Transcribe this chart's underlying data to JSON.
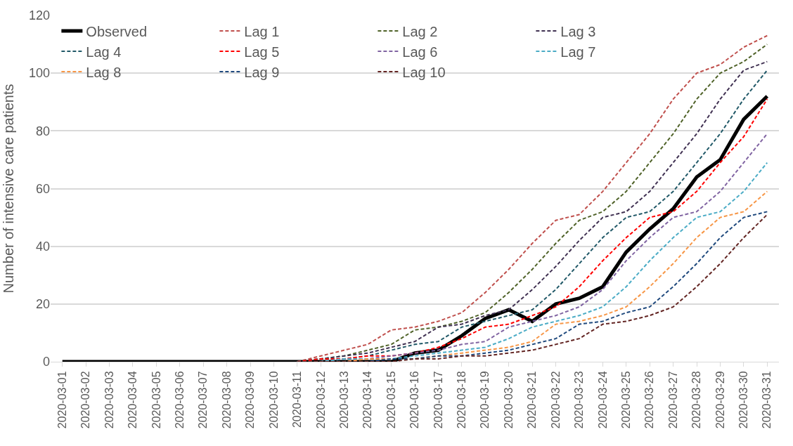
{
  "chart_data": {
    "type": "line",
    "ylabel": "Number of intensive care patients",
    "categories": [
      "2020-03-01",
      "2020-03-02",
      "2020-03-03",
      "2020-03-04",
      "2020-03-05",
      "2020-03-06",
      "2020-03-07",
      "2020-03-08",
      "2020-03-09",
      "2020-03-10",
      "2020-03-11",
      "2020-03-12",
      "2020-03-13",
      "2020-03-14",
      "2020-03-15",
      "2020-03-16",
      "2020-03-17",
      "2020-03-18",
      "2020-03-19",
      "2020-03-20",
      "2020-03-21",
      "2020-03-22",
      "2020-03-23",
      "2020-03-24",
      "2020-03-25",
      "2020-03-26",
      "2020-03-27",
      "2020-03-28",
      "2020-03-29",
      "2020-03-30",
      "2020-03-31"
    ],
    "ylim": [
      0,
      120
    ],
    "yticks": [
      0,
      20,
      40,
      60,
      80,
      100,
      120
    ],
    "grid": "y",
    "legend": "top left",
    "marker": "none",
    "series": [
      {
        "name": "Observed",
        "color": "#000000",
        "line_style": "solid",
        "values": [
          0,
          0,
          0,
          0,
          0,
          0,
          0,
          0,
          0,
          0,
          0,
          0,
          0,
          0,
          0,
          3,
          4,
          9,
          15,
          18,
          14,
          20,
          22,
          26,
          38,
          46,
          53,
          64,
          70,
          84,
          92
        ]
      },
      {
        "name": "Lag 1",
        "color": "#c0504d",
        "line_style": "dashed",
        "values": [
          null,
          null,
          null,
          null,
          null,
          null,
          null,
          null,
          null,
          null,
          0,
          2,
          4,
          6,
          11,
          12,
          14,
          17,
          24,
          32,
          41,
          49,
          51,
          59,
          69,
          79,
          91,
          100,
          103,
          109,
          113
        ]
      },
      {
        "name": "Lag 2",
        "color": "#4f6228",
        "line_style": "dashed",
        "values": [
          null,
          null,
          null,
          null,
          null,
          null,
          null,
          null,
          null,
          null,
          0,
          1,
          2,
          4,
          6,
          11,
          12,
          14,
          17,
          24,
          32,
          41,
          49,
          52,
          59,
          69,
          79,
          91,
          100,
          104,
          110
        ]
      },
      {
        "name": "Lag 3",
        "color": "#403152",
        "line_style": "dashed",
        "values": [
          null,
          null,
          null,
          null,
          null,
          null,
          null,
          null,
          null,
          null,
          0,
          1,
          2,
          3,
          5,
          7,
          12,
          13,
          16,
          18,
          25,
          33,
          42,
          50,
          52,
          59,
          69,
          79,
          91,
          101,
          104
        ]
      },
      {
        "name": "Lag 4",
        "color": "#215968",
        "line_style": "dashed",
        "values": [
          null,
          null,
          null,
          null,
          null,
          null,
          null,
          null,
          null,
          null,
          0,
          1,
          1,
          2,
          4,
          6,
          7,
          12,
          14,
          16,
          18,
          25,
          34,
          43,
          50,
          52,
          59,
          69,
          79,
          91,
          101
        ]
      },
      {
        "name": "Lag 5",
        "color": "#ff0000",
        "line_style": "dashed",
        "values": [
          null,
          null,
          null,
          null,
          null,
          null,
          null,
          null,
          null,
          null,
          0,
          1,
          1,
          2,
          2,
          3,
          5,
          8,
          12,
          13,
          16,
          19,
          26,
          35,
          43,
          50,
          52,
          59,
          69,
          78,
          91
        ]
      },
      {
        "name": "Lag 6",
        "color": "#8064a2",
        "line_style": "dashed",
        "values": [
          null,
          null,
          null,
          null,
          null,
          null,
          null,
          null,
          null,
          null,
          0,
          0,
          1,
          1,
          2,
          3,
          4,
          6,
          7,
          12,
          14,
          16,
          19,
          25,
          35,
          43,
          50,
          52,
          59,
          69,
          79
        ]
      },
      {
        "name": "Lag 7",
        "color": "#4bacc6",
        "line_style": "dashed",
        "values": [
          null,
          null,
          null,
          null,
          null,
          null,
          null,
          null,
          null,
          null,
          0,
          0,
          1,
          1,
          1,
          2,
          3,
          4,
          5,
          8,
          12,
          14,
          16,
          19,
          26,
          35,
          43,
          50,
          52,
          59,
          69
        ]
      },
      {
        "name": "Lag 8",
        "color": "#f79646",
        "line_style": "dashed",
        "values": [
          null,
          null,
          null,
          null,
          null,
          null,
          null,
          null,
          null,
          null,
          0,
          0,
          0,
          1,
          1,
          1,
          2,
          3,
          4,
          5,
          7,
          13,
          14,
          16,
          19,
          26,
          34,
          43,
          50,
          52,
          59
        ]
      },
      {
        "name": "Lag 9",
        "color": "#1f497d",
        "line_style": "dashed",
        "values": [
          null,
          null,
          null,
          null,
          null,
          null,
          null,
          null,
          null,
          null,
          0,
          0,
          0,
          0,
          1,
          1,
          2,
          2,
          3,
          4,
          6,
          8,
          13,
          14,
          17,
          19,
          26,
          34,
          43,
          50,
          52
        ]
      },
      {
        "name": "Lag 10",
        "color": "#632523",
        "line_style": "dashed",
        "values": [
          null,
          null,
          null,
          null,
          null,
          null,
          null,
          null,
          null,
          null,
          0,
          0,
          0,
          0,
          0,
          1,
          1,
          2,
          2,
          3,
          4,
          6,
          8,
          13,
          14,
          16,
          19,
          26,
          34,
          43,
          51
        ]
      }
    ]
  }
}
